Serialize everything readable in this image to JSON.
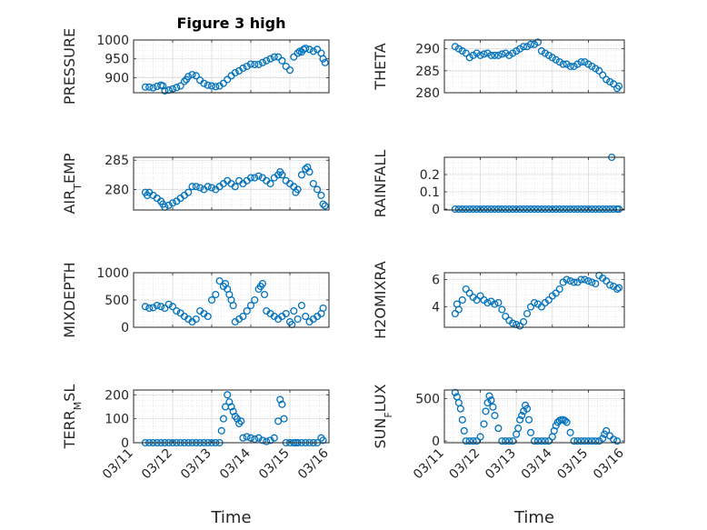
{
  "chart_data": [
    {
      "type": "scatter",
      "title": "Figure 3 high",
      "ylabel_parts": [
        {
          "t": "PRESSURE"
        }
      ],
      "xlim": [
        0,
        5
      ],
      "ylim": [
        860,
        1000
      ],
      "yticks": [
        900,
        950,
        1000
      ],
      "xticks": [],
      "color": "#0072bd",
      "x": [
        0.3,
        0.4,
        0.5,
        0.6,
        0.7,
        0.75,
        0.8,
        0.9,
        1.0,
        1.1,
        1.2,
        1.3,
        1.35,
        1.4,
        1.5,
        1.6,
        1.7,
        1.8,
        1.9,
        2.0,
        2.1,
        2.2,
        2.3,
        2.4,
        2.5,
        2.6,
        2.7,
        2.8,
        2.9,
        3.0,
        3.1,
        3.2,
        3.3,
        3.4,
        3.5,
        3.6,
        3.7,
        3.8,
        3.9,
        4.0,
        4.1,
        4.2,
        4.25,
        4.3,
        4.35,
        4.4,
        4.5,
        4.6,
        4.7,
        4.8,
        4.85,
        4.9
      ],
      "y": [
        875,
        875,
        873,
        877,
        880,
        878,
        865,
        867,
        870,
        874,
        878,
        890,
        895,
        903,
        908,
        905,
        893,
        885,
        880,
        878,
        876,
        878,
        885,
        895,
        905,
        913,
        918,
        925,
        930,
        936,
        935,
        935,
        940,
        945,
        950,
        955,
        955,
        945,
        930,
        920,
        955,
        965,
        970,
        968,
        975,
        978,
        975,
        970,
        975,
        965,
        950,
        940
      ]
    },
    {
      "type": "scatter",
      "ylabel_parts": [
        {
          "t": "THETA"
        }
      ],
      "xlim": [
        0,
        5
      ],
      "ylim": [
        280,
        292
      ],
      "yticks": [
        280,
        285,
        290
      ],
      "xticks": [],
      "color": "#0072bd",
      "x": [
        0.3,
        0.4,
        0.5,
        0.6,
        0.7,
        0.8,
        0.9,
        1.0,
        1.1,
        1.2,
        1.3,
        1.4,
        1.5,
        1.6,
        1.7,
        1.8,
        1.9,
        2.0,
        2.1,
        2.2,
        2.3,
        2.4,
        2.5,
        2.6,
        2.7,
        2.8,
        2.9,
        3.0,
        3.1,
        3.2,
        3.3,
        3.4,
        3.5,
        3.6,
        3.7,
        3.8,
        3.9,
        4.0,
        4.1,
        4.2,
        4.3,
        4.4,
        4.5,
        4.6,
        4.7,
        4.8,
        4.85
      ],
      "y": [
        290.5,
        290,
        289.5,
        289,
        288,
        288.5,
        289,
        288.5,
        288.8,
        289,
        288.5,
        288.5,
        288.5,
        288.8,
        289,
        288.5,
        289,
        289.5,
        290,
        290.5,
        290.5,
        291,
        291,
        291.5,
        289.5,
        289,
        288.5,
        288,
        287.5,
        287,
        286.5,
        286.5,
        286,
        286,
        286.5,
        287,
        287,
        286.5,
        286,
        285.5,
        285,
        284,
        283,
        282.5,
        282,
        281,
        281.5
      ]
    },
    {
      "type": "scatter",
      "ylabel_parts": [
        {
          "t": "AIR"
        },
        {
          "t": "T",
          "sub": true
        },
        {
          "t": "EMP"
        }
      ],
      "xlim": [
        0,
        5
      ],
      "ylim": [
        276.5,
        285.5
      ],
      "yticks": [
        280,
        285
      ],
      "xticks": [],
      "color": "#0072bd",
      "x": [
        0.3,
        0.35,
        0.4,
        0.5,
        0.6,
        0.7,
        0.75,
        0.8,
        0.9,
        1.0,
        1.1,
        1.2,
        1.3,
        1.4,
        1.5,
        1.6,
        1.7,
        1.8,
        1.9,
        2.0,
        2.1,
        2.2,
        2.3,
        2.4,
        2.5,
        2.6,
        2.7,
        2.8,
        2.9,
        3.0,
        3.1,
        3.2,
        3.3,
        3.4,
        3.5,
        3.6,
        3.7,
        3.75,
        3.8,
        3.9,
        4.0,
        4.1,
        4.15,
        4.2,
        4.3,
        4.4,
        4.45,
        4.5,
        4.6,
        4.7,
        4.8,
        4.85,
        4.9
      ],
      "y": [
        279.5,
        279,
        279.5,
        279,
        278.5,
        278,
        277.5,
        277,
        277.3,
        277.7,
        278,
        278.5,
        279,
        279.5,
        280.5,
        280.5,
        280.3,
        280,
        280.5,
        280.3,
        280,
        280.5,
        281,
        281.5,
        281,
        280.5,
        281.5,
        281,
        281.5,
        282,
        282,
        282.3,
        282,
        281.5,
        281,
        282,
        282.5,
        283,
        282.5,
        281.5,
        281,
        280.5,
        279.5,
        280,
        282.5,
        283.5,
        283.8,
        283,
        281,
        280,
        279,
        277.5,
        277.2
      ]
    },
    {
      "type": "scatter",
      "ylabel_parts": [
        {
          "t": "RAINFALL"
        }
      ],
      "xlim": [
        0,
        5
      ],
      "ylim": [
        -0.005,
        0.3
      ],
      "yticks": [
        0,
        0.1,
        0.2
      ],
      "xticks": [],
      "color": "#0072bd",
      "x": [
        0.3,
        0.4,
        0.5,
        0.6,
        0.7,
        0.8,
        0.9,
        1.0,
        1.1,
        1.2,
        1.3,
        1.4,
        1.5,
        1.6,
        1.7,
        1.8,
        1.9,
        2.0,
        2.1,
        2.2,
        2.3,
        2.4,
        2.5,
        2.6,
        2.7,
        2.8,
        2.9,
        3.0,
        3.1,
        3.2,
        3.3,
        3.4,
        3.5,
        3.6,
        3.7,
        3.8,
        3.9,
        4.0,
        4.1,
        4.2,
        4.3,
        4.4,
        4.5,
        4.6,
        4.7,
        4.8,
        4.85,
        4.65
      ],
      "y": [
        0,
        0,
        0,
        0,
        0,
        0,
        0,
        0,
        0,
        0,
        0,
        0,
        0,
        0,
        0,
        0,
        0,
        0,
        0,
        0,
        0,
        0,
        0,
        0,
        0,
        0,
        0,
        0,
        0,
        0,
        0,
        0,
        0,
        0,
        0,
        0,
        0,
        0,
        0,
        0,
        0,
        0,
        0,
        0,
        0,
        0,
        0,
        0.3
      ]
    },
    {
      "type": "scatter",
      "ylabel_parts": [
        {
          "t": "MIXDEPTH"
        }
      ],
      "xlim": [
        0,
        5
      ],
      "ylim": [
        0,
        1000
      ],
      "yticks": [
        0,
        500,
        1000
      ],
      "xticks": [],
      "color": "#0072bd",
      "x": [
        0.3,
        0.4,
        0.5,
        0.6,
        0.7,
        0.8,
        0.9,
        1.0,
        1.1,
        1.2,
        1.3,
        1.4,
        1.5,
        1.6,
        1.7,
        1.8,
        1.9,
        2.0,
        2.1,
        2.2,
        2.3,
        2.35,
        2.4,
        2.45,
        2.5,
        2.55,
        2.6,
        2.7,
        2.8,
        2.9,
        3.0,
        3.1,
        3.2,
        3.25,
        3.3,
        3.35,
        3.4,
        3.5,
        3.6,
        3.7,
        3.8,
        3.9,
        4.0,
        4.05,
        4.1,
        4.2,
        4.3,
        4.4,
        4.5,
        4.6,
        4.7,
        4.8,
        4.85
      ],
      "y": [
        380,
        350,
        360,
        400,
        380,
        350,
        420,
        380,
        300,
        260,
        200,
        150,
        100,
        150,
        300,
        250,
        200,
        500,
        600,
        850,
        750,
        800,
        700,
        600,
        500,
        400,
        100,
        150,
        200,
        300,
        400,
        500,
        700,
        750,
        800,
        600,
        300,
        250,
        200,
        150,
        200,
        250,
        100,
        50,
        300,
        150,
        400,
        200,
        100,
        150,
        200,
        250,
        350
      ]
    },
    {
      "type": "scatter",
      "ylabel_parts": [
        {
          "t": "H2OMIXRA"
        }
      ],
      "xlim": [
        0,
        5
      ],
      "ylim": [
        2.5,
        6.5
      ],
      "yticks": [
        4,
        6
      ],
      "xticks": [],
      "color": "#0072bd",
      "x": [
        0.3,
        0.35,
        0.4,
        0.5,
        0.6,
        0.7,
        0.8,
        0.9,
        1.0,
        1.1,
        1.2,
        1.3,
        1.4,
        1.5,
        1.6,
        1.7,
        1.8,
        1.9,
        2.0,
        2.1,
        2.2,
        2.3,
        2.4,
        2.5,
        2.6,
        2.7,
        2.8,
        2.9,
        3.0,
        3.1,
        3.2,
        3.3,
        3.4,
        3.5,
        3.6,
        3.7,
        3.8,
        3.9,
        4.0,
        4.1,
        4.2,
        4.3,
        4.4,
        4.5,
        4.6,
        4.7,
        4.8,
        4.85
      ],
      "y": [
        3.5,
        4.2,
        3.8,
        4.5,
        5.3,
        5,
        4.7,
        4.5,
        4.8,
        4.5,
        4.3,
        4.4,
        4.2,
        4.3,
        3.8,
        3.3,
        3,
        2.8,
        2.7,
        2.6,
        2.9,
        3.5,
        4,
        4.3,
        4.2,
        4,
        4.3,
        4.5,
        4.8,
        5,
        5.3,
        5.8,
        6,
        5.9,
        5.8,
        5.8,
        6,
        6,
        5.9,
        5.8,
        5.7,
        6.3,
        6.1,
        5.9,
        5.6,
        5.5,
        5.3,
        5.4
      ]
    },
    {
      "type": "scatter",
      "ylabel_parts": [
        {
          "t": "TERR"
        },
        {
          "t": "M",
          "sub": true
        },
        {
          "t": "SL"
        }
      ],
      "xlim": [
        0,
        5
      ],
      "ylim": [
        0,
        220
      ],
      "yticks": [
        0,
        100,
        200
      ],
      "xticks": [
        "03/11",
        "03/12",
        "03/13",
        "03/14",
        "03/15",
        "03/16"
      ],
      "xlabel": "Time",
      "color": "#0072bd",
      "x": [
        0.3,
        0.4,
        0.5,
        0.6,
        0.7,
        0.8,
        0.9,
        1.0,
        1.1,
        1.2,
        1.3,
        1.4,
        1.5,
        1.6,
        1.7,
        1.8,
        1.9,
        2.0,
        2.1,
        2.2,
        2.25,
        2.3,
        2.35,
        2.4,
        2.45,
        2.5,
        2.55,
        2.6,
        2.65,
        2.7,
        2.75,
        2.8,
        2.9,
        3.0,
        3.1,
        3.2,
        3.3,
        3.4,
        3.5,
        3.6,
        3.7,
        3.75,
        3.8,
        3.85,
        3.9,
        4.0,
        4.1,
        4.15,
        4.2,
        4.3,
        4.4,
        4.5,
        4.6,
        4.7,
        4.8,
        4.85
      ],
      "y": [
        0,
        0,
        0,
        0,
        0,
        0,
        0,
        0,
        0,
        0,
        0,
        0,
        0,
        0,
        0,
        0,
        0,
        0,
        0,
        0,
        50,
        100,
        150,
        200,
        170,
        150,
        130,
        110,
        100,
        80,
        90,
        20,
        25,
        20,
        15,
        20,
        10,
        5,
        10,
        20,
        90,
        180,
        160,
        100,
        0,
        0,
        0,
        0,
        0,
        0,
        0,
        0,
        0,
        0,
        20,
        10
      ]
    },
    {
      "type": "scatter",
      "ylabel_parts": [
        {
          "t": "SUN"
        },
        {
          "t": "F",
          "sub": true
        },
        {
          "t": "LUX"
        }
      ],
      "xlim": [
        0,
        5
      ],
      "ylim": [
        -20,
        600
      ],
      "yticks": [
        0,
        500
      ],
      "xticks": [
        "03/11",
        "03/12",
        "03/13",
        "03/14",
        "03/15",
        "03/16"
      ],
      "xlabel": "Time",
      "color": "#0072bd",
      "x": [
        0.3,
        0.35,
        0.4,
        0.45,
        0.5,
        0.55,
        0.6,
        0.7,
        0.8,
        0.9,
        1.0,
        1.1,
        1.15,
        1.2,
        1.25,
        1.3,
        1.35,
        1.4,
        1.5,
        1.6,
        1.7,
        1.8,
        1.9,
        2.0,
        2.05,
        2.1,
        2.15,
        2.2,
        2.25,
        2.3,
        2.35,
        2.4,
        2.5,
        2.6,
        2.7,
        2.8,
        2.9,
        3.0,
        3.05,
        3.1,
        3.15,
        3.2,
        3.25,
        3.3,
        3.35,
        3.4,
        3.5,
        3.6,
        3.7,
        3.8,
        3.9,
        4.0,
        4.1,
        4.2,
        4.3,
        4.4,
        4.45,
        4.5,
        4.6,
        4.7,
        4.8
      ],
      "y": [
        570,
        520,
        450,
        380,
        250,
        120,
        0,
        0,
        0,
        0,
        50,
        200,
        350,
        450,
        530,
        480,
        400,
        300,
        150,
        0,
        0,
        0,
        0,
        80,
        150,
        250,
        300,
        350,
        420,
        380,
        250,
        100,
        0,
        0,
        0,
        0,
        0,
        50,
        120,
        180,
        220,
        240,
        250,
        250,
        240,
        220,
        100,
        0,
        0,
        0,
        0,
        0,
        0,
        0,
        0,
        30,
        80,
        120,
        60,
        20,
        0
      ]
    }
  ]
}
